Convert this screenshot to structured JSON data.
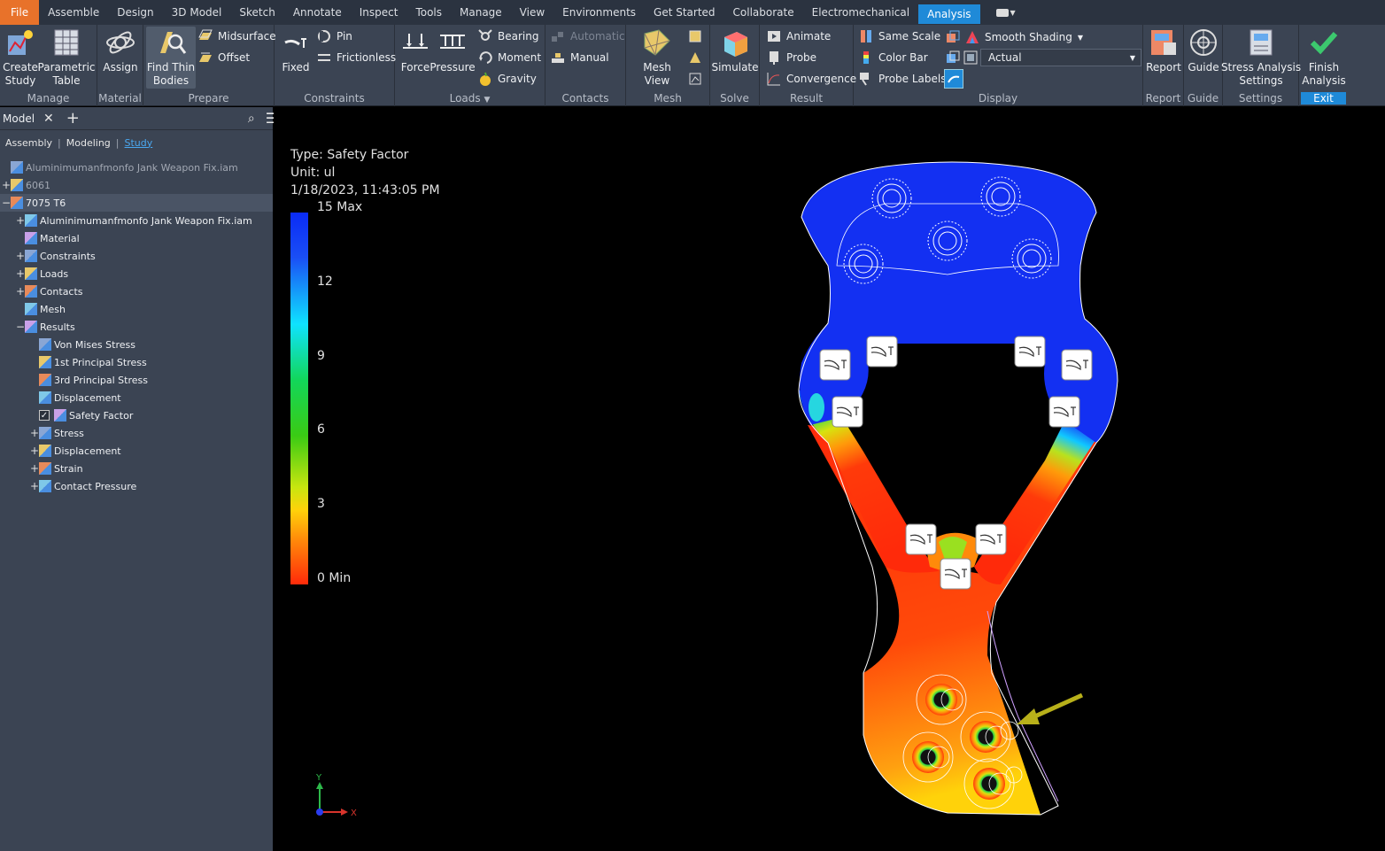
{
  "menu": {
    "tabs": [
      "File",
      "Assemble",
      "Design",
      "3D Model",
      "Sketch",
      "Annotate",
      "Inspect",
      "Tools",
      "Manage",
      "View",
      "Environments",
      "Get Started",
      "Collaborate",
      "Electromechanical",
      "Analysis"
    ],
    "active": "Analysis"
  },
  "ribbon": {
    "manage": {
      "title": "Manage",
      "create_study": "Create\nStudy",
      "parametric_table": "Parametric\nTable"
    },
    "material": {
      "title": "Material",
      "assign": "Assign"
    },
    "prepare": {
      "title": "Prepare",
      "find_thin_bodies": "Find Thin\nBodies",
      "midsurface": "Midsurface",
      "offset": "Offset"
    },
    "constraints": {
      "title": "Constraints",
      "fixed": "Fixed",
      "pin": "Pin",
      "frictionless": "Frictionless"
    },
    "loads": {
      "title": "Loads",
      "force": "Force",
      "pressure": "Pressure",
      "bearing": "Bearing",
      "moment": "Moment",
      "gravity": "Gravity"
    },
    "contacts": {
      "title": "Contacts",
      "automatic": "Automatic",
      "manual": "Manual"
    },
    "mesh": {
      "title": "Mesh",
      "mesh_view": "Mesh View"
    },
    "solve": {
      "title": "Solve",
      "simulate": "Simulate"
    },
    "result": {
      "title": "Result",
      "animate": "Animate",
      "probe": "Probe",
      "convergence": "Convergence"
    },
    "display": {
      "title": "Display",
      "same_scale": "Same Scale",
      "color_bar": "Color Bar",
      "probe_labels": "Probe Labels",
      "smooth_shading": "Smooth Shading",
      "scale_value": "Actual"
    },
    "report": {
      "title": "Report",
      "report": "Report"
    },
    "guide": {
      "title": "Guide",
      "guide": "Guide"
    },
    "settings": {
      "title": "Settings",
      "stress_settings": "Stress Analysis\nSettings"
    },
    "exit": {
      "title": "Exit",
      "finish": "Finish\nAnalysis"
    }
  },
  "browser": {
    "tab_label": "Model",
    "views": {
      "assembly": "Assembly",
      "modeling": "Modeling",
      "study": "Study"
    },
    "tree": [
      {
        "label": "Aluminimumanfmonfo Jank Weapon Fix.iam",
        "level": 0,
        "dim": true,
        "exp": ""
      },
      {
        "label": "6061",
        "level": 0,
        "dim": true,
        "exp": "+"
      },
      {
        "label": "7075 T6",
        "level": 0,
        "exp": "−",
        "selected": true
      },
      {
        "label": "Aluminimumanfmonfo Jank Weapon Fix.iam",
        "level": 1,
        "exp": "+"
      },
      {
        "label": "Material",
        "level": 1,
        "exp": ""
      },
      {
        "label": "Constraints",
        "level": 1,
        "exp": "+"
      },
      {
        "label": "Loads",
        "level": 1,
        "exp": "+"
      },
      {
        "label": "Contacts",
        "level": 1,
        "exp": "+"
      },
      {
        "label": "Mesh",
        "level": 1,
        "exp": ""
      },
      {
        "label": "Results",
        "level": 1,
        "exp": "−"
      },
      {
        "label": "Von Mises Stress",
        "level": 2,
        "exp": ""
      },
      {
        "label": "1st Principal Stress",
        "level": 2,
        "exp": ""
      },
      {
        "label": "3rd Principal Stress",
        "level": 2,
        "exp": ""
      },
      {
        "label": "Displacement",
        "level": 2,
        "exp": ""
      },
      {
        "label": "Safety Factor",
        "level": 2,
        "exp": "",
        "checked": true
      },
      {
        "label": "Stress",
        "level": 2,
        "exp": "+"
      },
      {
        "label": "Displacement",
        "level": 2,
        "exp": "+"
      },
      {
        "label": "Strain",
        "level": 2,
        "exp": "+"
      },
      {
        "label": "Contact Pressure",
        "level": 2,
        "exp": "+"
      }
    ]
  },
  "viewport": {
    "type_line": "Type: Safety Factor",
    "unit_line": "Unit: ul",
    "date_line": "1/18/2023, 11:43:05 PM",
    "legend": [
      "15 Max",
      "12",
      "9",
      "6",
      "3",
      "0 Min"
    ],
    "axis_y": "Y",
    "axis_x": "X"
  },
  "colors": {
    "accent": "#1f8ad8",
    "file_tab": "#e8722a",
    "panel_bg": "#3b4453"
  }
}
